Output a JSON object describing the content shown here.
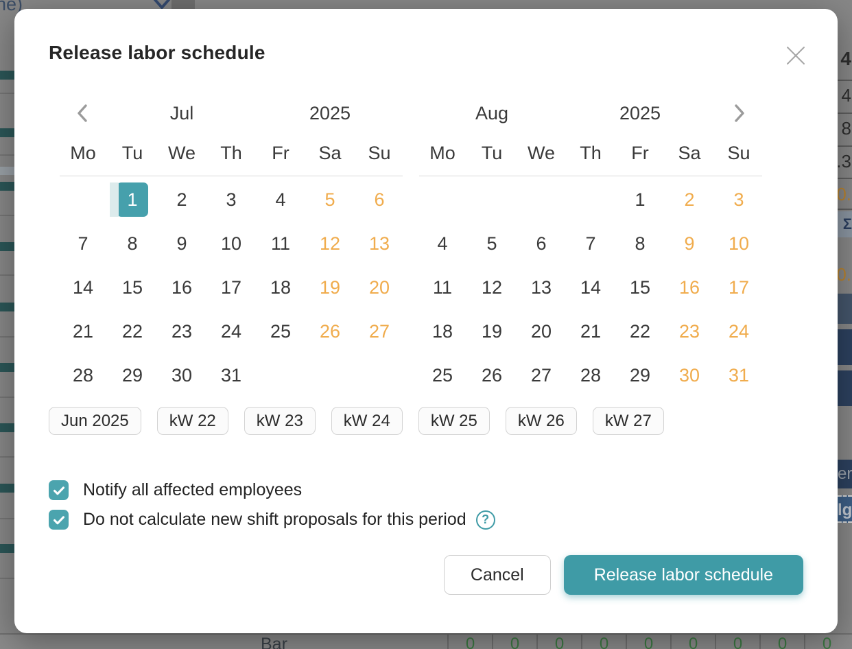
{
  "modal": {
    "title": "Release labor schedule"
  },
  "calendar": {
    "weekdays": [
      "Mo",
      "Tu",
      "We",
      "Th",
      "Fr",
      "Sa",
      "Su"
    ],
    "months": [
      {
        "name": "Jul",
        "year": "2025",
        "weeks": [
          [
            "",
            {
              "day": "1",
              "selected": true,
              "lead": true
            },
            "2",
            "3",
            "4",
            "5",
            "6"
          ],
          [
            "7",
            "8",
            "9",
            "10",
            "11",
            "12",
            "13"
          ],
          [
            "14",
            "15",
            "16",
            "17",
            "18",
            "19",
            "20"
          ],
          [
            "21",
            "22",
            "23",
            "24",
            "25",
            "26",
            "27"
          ],
          [
            "28",
            "29",
            "30",
            "31",
            "",
            "",
            ""
          ]
        ]
      },
      {
        "name": "Aug",
        "year": "2025",
        "weeks": [
          [
            "",
            "",
            "",
            "",
            "1",
            "2",
            "3"
          ],
          [
            "4",
            "5",
            "6",
            "7",
            "8",
            "9",
            "10"
          ],
          [
            "11",
            "12",
            "13",
            "14",
            "15",
            "16",
            "17"
          ],
          [
            "18",
            "19",
            "20",
            "21",
            "22",
            "23",
            "24"
          ],
          [
            "25",
            "26",
            "27",
            "28",
            "29",
            "30",
            "31"
          ]
        ]
      }
    ]
  },
  "week_chips": [
    "Jun 2025",
    "kW 22",
    "kW 23",
    "kW 24",
    "kW 25",
    "kW 26",
    "kW 27"
  ],
  "options": [
    {
      "label": "Notify all affected employees",
      "checked": true,
      "help": false
    },
    {
      "label": "Do not calculate new shift proposals for this period",
      "checked": true,
      "help": true
    }
  ],
  "footer": {
    "cancel": "Cancel",
    "submit": "Release labor schedule"
  },
  "colors": {
    "accent_teal": "#3f9ba6",
    "selected_day_teal": "#46a0ac",
    "weekend_orange": "#f0ac4d",
    "range_lead_band": "#dcebec"
  },
  "background": {
    "top_left_text": "ne)",
    "right_numbers": [
      {
        "text": "4",
        "style": "bold"
      },
      {
        "text": "4",
        "style": ""
      },
      {
        "text": "8",
        "style": ""
      },
      {
        "text": "7.3",
        "style": ""
      },
      {
        "text": "0.",
        "style": "orange"
      }
    ],
    "sum_icon": "Σ",
    "right_orange_value": "0.",
    "right_cell_labels": [
      "er",
      "lg"
    ],
    "bottom_row_label": "Bar",
    "bottom_zeros": [
      "0",
      "0",
      "0",
      "0",
      "0",
      "0",
      "0",
      "0",
      "0"
    ]
  }
}
